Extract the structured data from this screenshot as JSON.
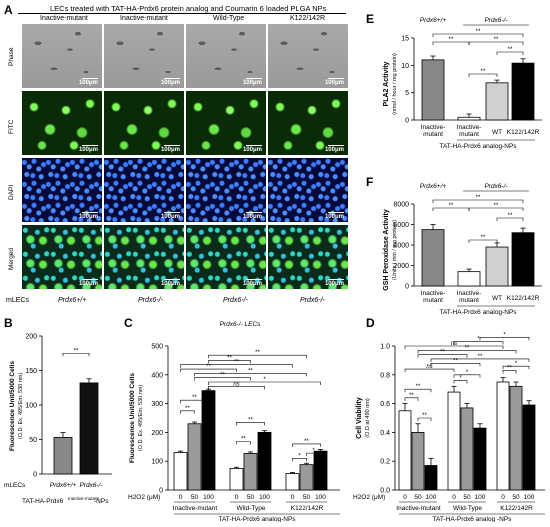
{
  "panel_a": {
    "letter": "A",
    "header": "LECs treated with TAT-HA-Prdx6 protein analog and Coumarin 6 loaded PLGA NPs",
    "columns": [
      "Inactive-mutant",
      "Inactive-mutant",
      "Wild-Type",
      "K122/142R"
    ],
    "rows": [
      "Phase",
      "FITC",
      "DAPI",
      "Merged"
    ],
    "scale_label": "100μm",
    "footer_lead": "mLECs",
    "footer": [
      "Prdx6+/+",
      "Prdx6-/-",
      "Prdx6-/-",
      "Prdx6-/-"
    ]
  },
  "panel_b": {
    "letter": "B",
    "ylabel": "Fluorescence Unit/5000 Cells",
    "ylabel2": "(O.D. Ex. 495/Em. 530 nm)",
    "row_label": "mLECs",
    "categories": [
      "Prdx6+/+",
      "Prdx6-/-"
    ],
    "bottom_label": "TAT-HA-Prdx6",
    "bottom_sup": "Inactive-mutant",
    "bottom_tail": "-NPs",
    "sig": "**"
  },
  "panel_c": {
    "letter": "C",
    "title": "Prdx6-/- LECs",
    "ylabel": "Fluorescence Unit/5000 Cells",
    "ylabel2": "(O.D. Ex. 495/Em. 530 nm)",
    "h2o2": "H2O2 (μM)",
    "doses": [
      "0",
      "50",
      "100"
    ],
    "groups": [
      "Inactive-mutant",
      "Wild-Type",
      "K122/142R"
    ],
    "bottom": "TAT-HA-Prdx6 analog-NPs",
    "sig_labels": [
      "**",
      "**",
      "**",
      "**",
      "**",
      "**",
      "**",
      "ns",
      "**",
      "**",
      "*",
      "**",
      "*",
      "*",
      "**"
    ]
  },
  "panel_d": {
    "letter": "D",
    "ylabel": "Cell Viability",
    "ylabel2": "(O.D at 490 nm)",
    "h2o2": "H2O2 (μM)",
    "doses": [
      "0",
      "50",
      "100"
    ],
    "groups": [
      "Inactive-mutant",
      "Wild-Type",
      "K122/142R"
    ],
    "bottom": "TAT-HA-Prdx6 analog -NPs",
    "sig_labels": [
      "*",
      "*",
      "ns",
      "**",
      "**",
      "*",
      "ns",
      "**",
      "**",
      "**",
      "**",
      "*",
      "*",
      "**",
      "**"
    ]
  },
  "panel_e": {
    "letter": "E",
    "ylabel": "PLA2 Activity",
    "ylabel2": "(nmol / hour / mg protein)",
    "group_labels": [
      "Prdx6+/+",
      "Prdx6-/-"
    ],
    "categories": [
      "Inactive-mutant",
      "Inactive-mutant",
      "WT",
      "K122/142R"
    ],
    "bottom": "TAT-HA-Prdx6 analog-NPs",
    "sig_labels": [
      "**",
      "**",
      "**",
      "**",
      "**"
    ]
  },
  "panel_f": {
    "letter": "F",
    "ylabel": "GSH Peroxidase Activity",
    "ylabel2": "(Units / min / mg protein)",
    "group_labels": [
      "Prdx6+/+",
      "Prdx6-/-"
    ],
    "categories": [
      "Inactive-mutant",
      "Inactive-mutant",
      "WT",
      "K122/142R"
    ],
    "bottom": "TAT-HA-Prdx6 analog-NPs",
    "sig_labels": [
      "**",
      "**",
      "**",
      "**",
      "**"
    ]
  },
  "chart_data": [
    {
      "id": "B",
      "type": "bar",
      "categories": [
        "Prdx6+/+",
        "Prdx6-/-"
      ],
      "values": [
        53,
        132
      ],
      "errors": [
        7,
        6
      ],
      "colors": [
        "#888888",
        "#111111"
      ],
      "ylim": [
        0,
        200
      ],
      "yticks": [
        0,
        50,
        100,
        150,
        200
      ]
    },
    {
      "id": "C",
      "type": "bar",
      "categories": [
        "Inactive-mutant",
        "Wild-Type",
        "K122/142R"
      ],
      "series": [
        {
          "name": "0",
          "values": [
            130,
            75,
            57
          ],
          "errors": [
            5,
            4,
            4
          ]
        },
        {
          "name": "50",
          "values": [
            230,
            127,
            88
          ],
          "errors": [
            6,
            5,
            5
          ]
        },
        {
          "name": "100",
          "values": [
            345,
            200,
            135
          ],
          "errors": [
            5,
            6,
            6
          ]
        }
      ],
      "colors": [
        "#ffffff",
        "#9a9a9a",
        "#000000"
      ],
      "ylim": [
        0,
        500
      ],
      "yticks": [
        0,
        100,
        200,
        300,
        400,
        500
      ]
    },
    {
      "id": "D",
      "type": "bar",
      "categories": [
        "Inactive-mutant",
        "Wild-Type",
        "K122/142R"
      ],
      "series": [
        {
          "name": "0",
          "values": [
            0.55,
            0.68,
            0.75
          ],
          "errors": [
            0.05,
            0.04,
            0.03
          ]
        },
        {
          "name": "50",
          "values": [
            0.4,
            0.57,
            0.72
          ],
          "errors": [
            0.06,
            0.03,
            0.03
          ]
        },
        {
          "name": "100",
          "values": [
            0.17,
            0.43,
            0.59
          ],
          "errors": [
            0.05,
            0.03,
            0.03
          ]
        }
      ],
      "colors": [
        "#ffffff",
        "#9a9a9a",
        "#000000"
      ],
      "ylim": [
        0,
        1.0
      ],
      "yticks": [
        0.0,
        0.2,
        0.4,
        0.6,
        0.8,
        1.0
      ]
    },
    {
      "id": "E",
      "type": "bar",
      "categories": [
        "Inactive-mutant",
        "Inactive-mutant",
        "WT",
        "K122/142R"
      ],
      "values": [
        11.0,
        0.5,
        6.8,
        10.4
      ],
      "errors": [
        0.7,
        0.6,
        0.5,
        0.8
      ],
      "colors": [
        "#888888",
        "#ffffff",
        "#d0d0d0",
        "#000000"
      ],
      "ylim": [
        0,
        15
      ],
      "yticks": [
        0,
        5,
        10,
        15
      ]
    },
    {
      "id": "F",
      "type": "bar",
      "categories": [
        "Inactive-mutant",
        "Inactive-mutant",
        "WT",
        "K122/142R"
      ],
      "values": [
        5500,
        1400,
        3800,
        5200
      ],
      "errors": [
        500,
        250,
        400,
        450
      ],
      "colors": [
        "#888888",
        "#ffffff",
        "#d0d0d0",
        "#000000"
      ],
      "ylim": [
        0,
        8000
      ],
      "yticks": [
        0,
        2000,
        4000,
        6000,
        8000
      ]
    }
  ]
}
